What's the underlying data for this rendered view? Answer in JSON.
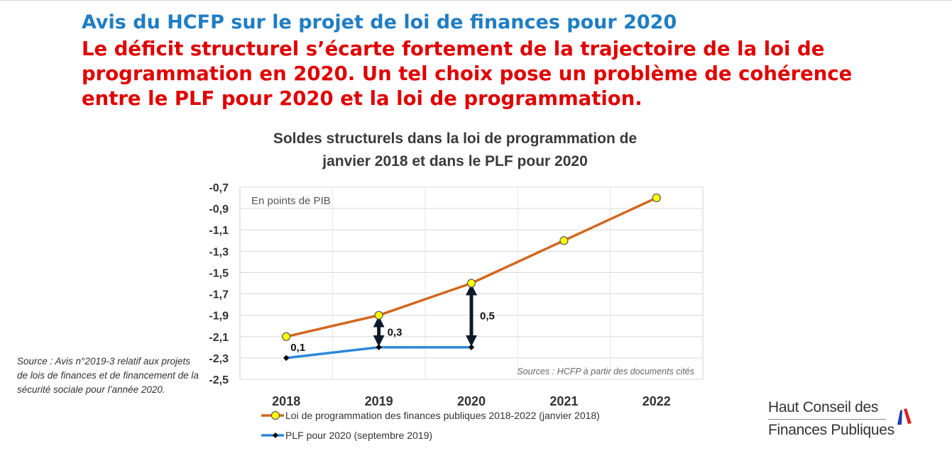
{
  "slide": {
    "heading": "Avis du HCFP sur le projet de loi de finances pour 2020",
    "subheading_lines": [
      "Le déficit structurel s’écarte fortement de la trajectoire de la loi de",
      "programmation en 2020. Un tel choix pose un problème de cohérence",
      "entre le PLF pour 2020 et la loi de programmation."
    ],
    "source_note": "Source : Avis n°2019-3 relatif aux projets de lois de finances et de financement de la sécurité sociale pour l’année 2020.",
    "logo": {
      "line1": "Haut Conseil des",
      "line2": "Finances Publiques",
      "colors": {
        "blue": "#1f3fa8",
        "red": "#e02020"
      }
    }
  },
  "chart_data": {
    "type": "line",
    "title_lines": [
      "Soldes structurels dans la loi de programmation de",
      "janvier 2018 et dans le PLF pour 2020"
    ],
    "unit_note": "En points de PIB",
    "source_label": "Sources : HCFP à partir des documents cités",
    "categories": [
      "2018",
      "2019",
      "2020",
      "2021",
      "2022"
    ],
    "y_ticks": [
      "-0,7",
      "-0,9",
      "-1,1",
      "-1,3",
      "-1,5",
      "-1,7",
      "-1,9",
      "-2,1",
      "-2,3",
      "-2,5"
    ],
    "ylim": [
      -2.5,
      -0.7
    ],
    "grid": true,
    "legend_position": "bottom",
    "series": [
      {
        "name": "Loi de programmation des finances publiques 2018-2022 (janvier 2018)",
        "values": [
          -2.1,
          -1.9,
          -1.6,
          -1.2,
          -0.8
        ],
        "color": "#d4661c",
        "marker": "circle",
        "marker_fill": "#ffff00"
      },
      {
        "name": "PLF pour 2020 (septembre 2019)",
        "values": [
          -2.3,
          -2.2,
          -2.2,
          null,
          null
        ],
        "color": "#2e88d8",
        "marker": "diamond",
        "marker_fill": "#000000"
      }
    ],
    "gap_annotations": [
      {
        "category": "2018",
        "label": "0,1",
        "arrow": false
      },
      {
        "category": "2019",
        "label": "0,3",
        "arrow": true
      },
      {
        "category": "2020",
        "label": "0,5",
        "arrow": true
      }
    ]
  }
}
